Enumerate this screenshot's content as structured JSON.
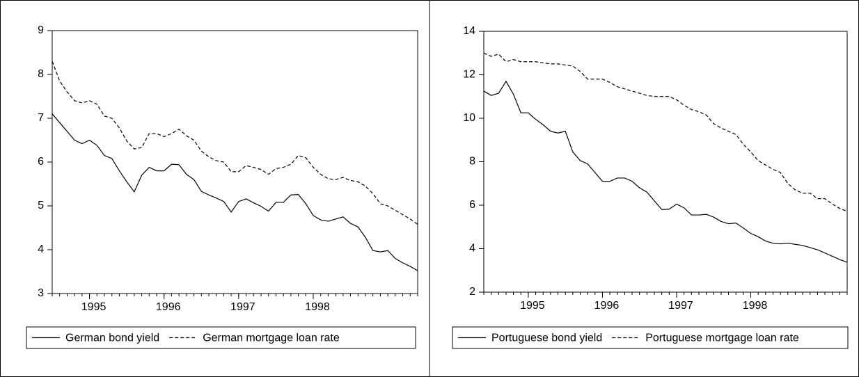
{
  "chart_data": [
    {
      "type": "line",
      "x": [
        1994.5,
        1994.6,
        1994.7,
        1994.8,
        1994.9,
        1995.0,
        1995.1,
        1995.2,
        1995.3,
        1995.4,
        1995.5,
        1995.6,
        1995.7,
        1995.8,
        1995.9,
        1996.0,
        1996.1,
        1996.2,
        1996.3,
        1996.4,
        1996.5,
        1996.6,
        1996.7,
        1996.8,
        1996.9,
        1997.0,
        1997.1,
        1997.2,
        1997.3,
        1997.4,
        1997.5,
        1997.6,
        1997.7,
        1997.8,
        1997.9,
        1998.0,
        1998.1,
        1998.2,
        1998.3,
        1998.4,
        1998.5,
        1998.6,
        1998.7,
        1998.8,
        1998.9,
        1999.0,
        1999.1,
        1999.2,
        1999.3,
        1999.4
      ],
      "series": [
        {
          "name": "German bond yield",
          "color": "#000000",
          "style": "solid",
          "values": [
            7.1,
            6.9,
            6.7,
            6.5,
            6.42,
            6.5,
            6.38,
            6.15,
            6.08,
            5.8,
            5.55,
            5.32,
            5.7,
            5.88,
            5.8,
            5.8,
            5.95,
            5.94,
            5.72,
            5.6,
            5.33,
            5.25,
            5.18,
            5.1,
            4.86,
            5.1,
            5.16,
            5.07,
            4.99,
            4.88,
            5.08,
            5.08,
            5.25,
            5.26,
            5.05,
            4.78,
            4.68,
            4.65,
            4.7,
            4.75,
            4.6,
            4.52,
            4.28,
            3.98,
            3.95,
            3.98,
            3.8,
            3.7,
            3.62,
            3.52
          ]
        },
        {
          "name": "German mortgage loan rate",
          "color": "#000000",
          "style": "dashed",
          "values": [
            8.3,
            7.85,
            7.6,
            7.4,
            7.35,
            7.4,
            7.32,
            7.05,
            7.0,
            6.78,
            6.48,
            6.3,
            6.33,
            6.65,
            6.65,
            6.58,
            6.65,
            6.75,
            6.6,
            6.5,
            6.25,
            6.12,
            6.03,
            6.0,
            5.78,
            5.78,
            5.92,
            5.88,
            5.83,
            5.72,
            5.85,
            5.88,
            5.95,
            6.15,
            6.1,
            5.88,
            5.72,
            5.62,
            5.6,
            5.65,
            5.58,
            5.55,
            5.45,
            5.28,
            5.05,
            5.0,
            4.9,
            4.8,
            4.7,
            4.58
          ]
        }
      ],
      "xlim": [
        1994.5,
        1999.4
      ],
      "xticks": [
        1995,
        1996,
        1997,
        1998
      ],
      "ylim": [
        3,
        9
      ],
      "yticks": [
        3,
        4,
        5,
        6,
        7,
        8,
        9
      ],
      "grid": false,
      "legend": "bottom"
    },
    {
      "type": "line",
      "x": [
        1994.4,
        1994.5,
        1994.6,
        1994.7,
        1994.8,
        1994.9,
        1995.0,
        1995.1,
        1995.2,
        1995.3,
        1995.4,
        1995.5,
        1995.6,
        1995.7,
        1995.8,
        1995.9,
        1996.0,
        1996.1,
        1996.2,
        1996.3,
        1996.4,
        1996.5,
        1996.6,
        1996.7,
        1996.8,
        1996.9,
        1997.0,
        1997.1,
        1997.2,
        1997.3,
        1997.4,
        1997.5,
        1997.6,
        1997.7,
        1997.8,
        1997.9,
        1998.0,
        1998.1,
        1998.2,
        1998.3,
        1998.4,
        1998.5,
        1998.6,
        1998.7,
        1998.8,
        1998.9,
        1999.0,
        1999.1,
        1999.2,
        1999.3
      ],
      "series": [
        {
          "name": "Portuguese bond yield",
          "color": "#000000",
          "style": "solid",
          "values": [
            11.25,
            11.05,
            11.15,
            11.7,
            11.1,
            10.25,
            10.25,
            9.95,
            9.7,
            9.4,
            9.32,
            9.4,
            8.45,
            8.05,
            7.9,
            7.5,
            7.1,
            7.1,
            7.25,
            7.25,
            7.1,
            6.8,
            6.6,
            6.2,
            5.8,
            5.82,
            6.05,
            5.88,
            5.55,
            5.55,
            5.58,
            5.45,
            5.25,
            5.15,
            5.18,
            4.95,
            4.7,
            4.55,
            4.35,
            4.25,
            4.22,
            4.25,
            4.2,
            4.15,
            4.05,
            3.95,
            3.8,
            3.65,
            3.5,
            3.38
          ]
        },
        {
          "name": "Portuguese mortgage loan rate",
          "color": "#000000",
          "style": "dashed",
          "values": [
            13.0,
            12.85,
            12.95,
            12.6,
            12.7,
            12.6,
            12.6,
            12.6,
            12.55,
            12.5,
            12.5,
            12.45,
            12.4,
            12.15,
            11.8,
            11.8,
            11.8,
            11.65,
            11.45,
            11.35,
            11.25,
            11.15,
            11.05,
            11.0,
            11.0,
            11.0,
            10.85,
            10.6,
            10.4,
            10.3,
            10.15,
            9.75,
            9.55,
            9.4,
            9.25,
            8.8,
            8.45,
            8.05,
            7.85,
            7.65,
            7.5,
            7.0,
            6.7,
            6.55,
            6.55,
            6.3,
            6.3,
            6.05,
            5.85,
            5.72
          ]
        }
      ],
      "xlim": [
        1994.4,
        1999.3
      ],
      "xticks": [
        1995,
        1996,
        1997,
        1998
      ],
      "ylim": [
        2,
        14
      ],
      "yticks": [
        2,
        4,
        6,
        8,
        10,
        12,
        14
      ],
      "grid": false,
      "legend": "bottom"
    }
  ]
}
